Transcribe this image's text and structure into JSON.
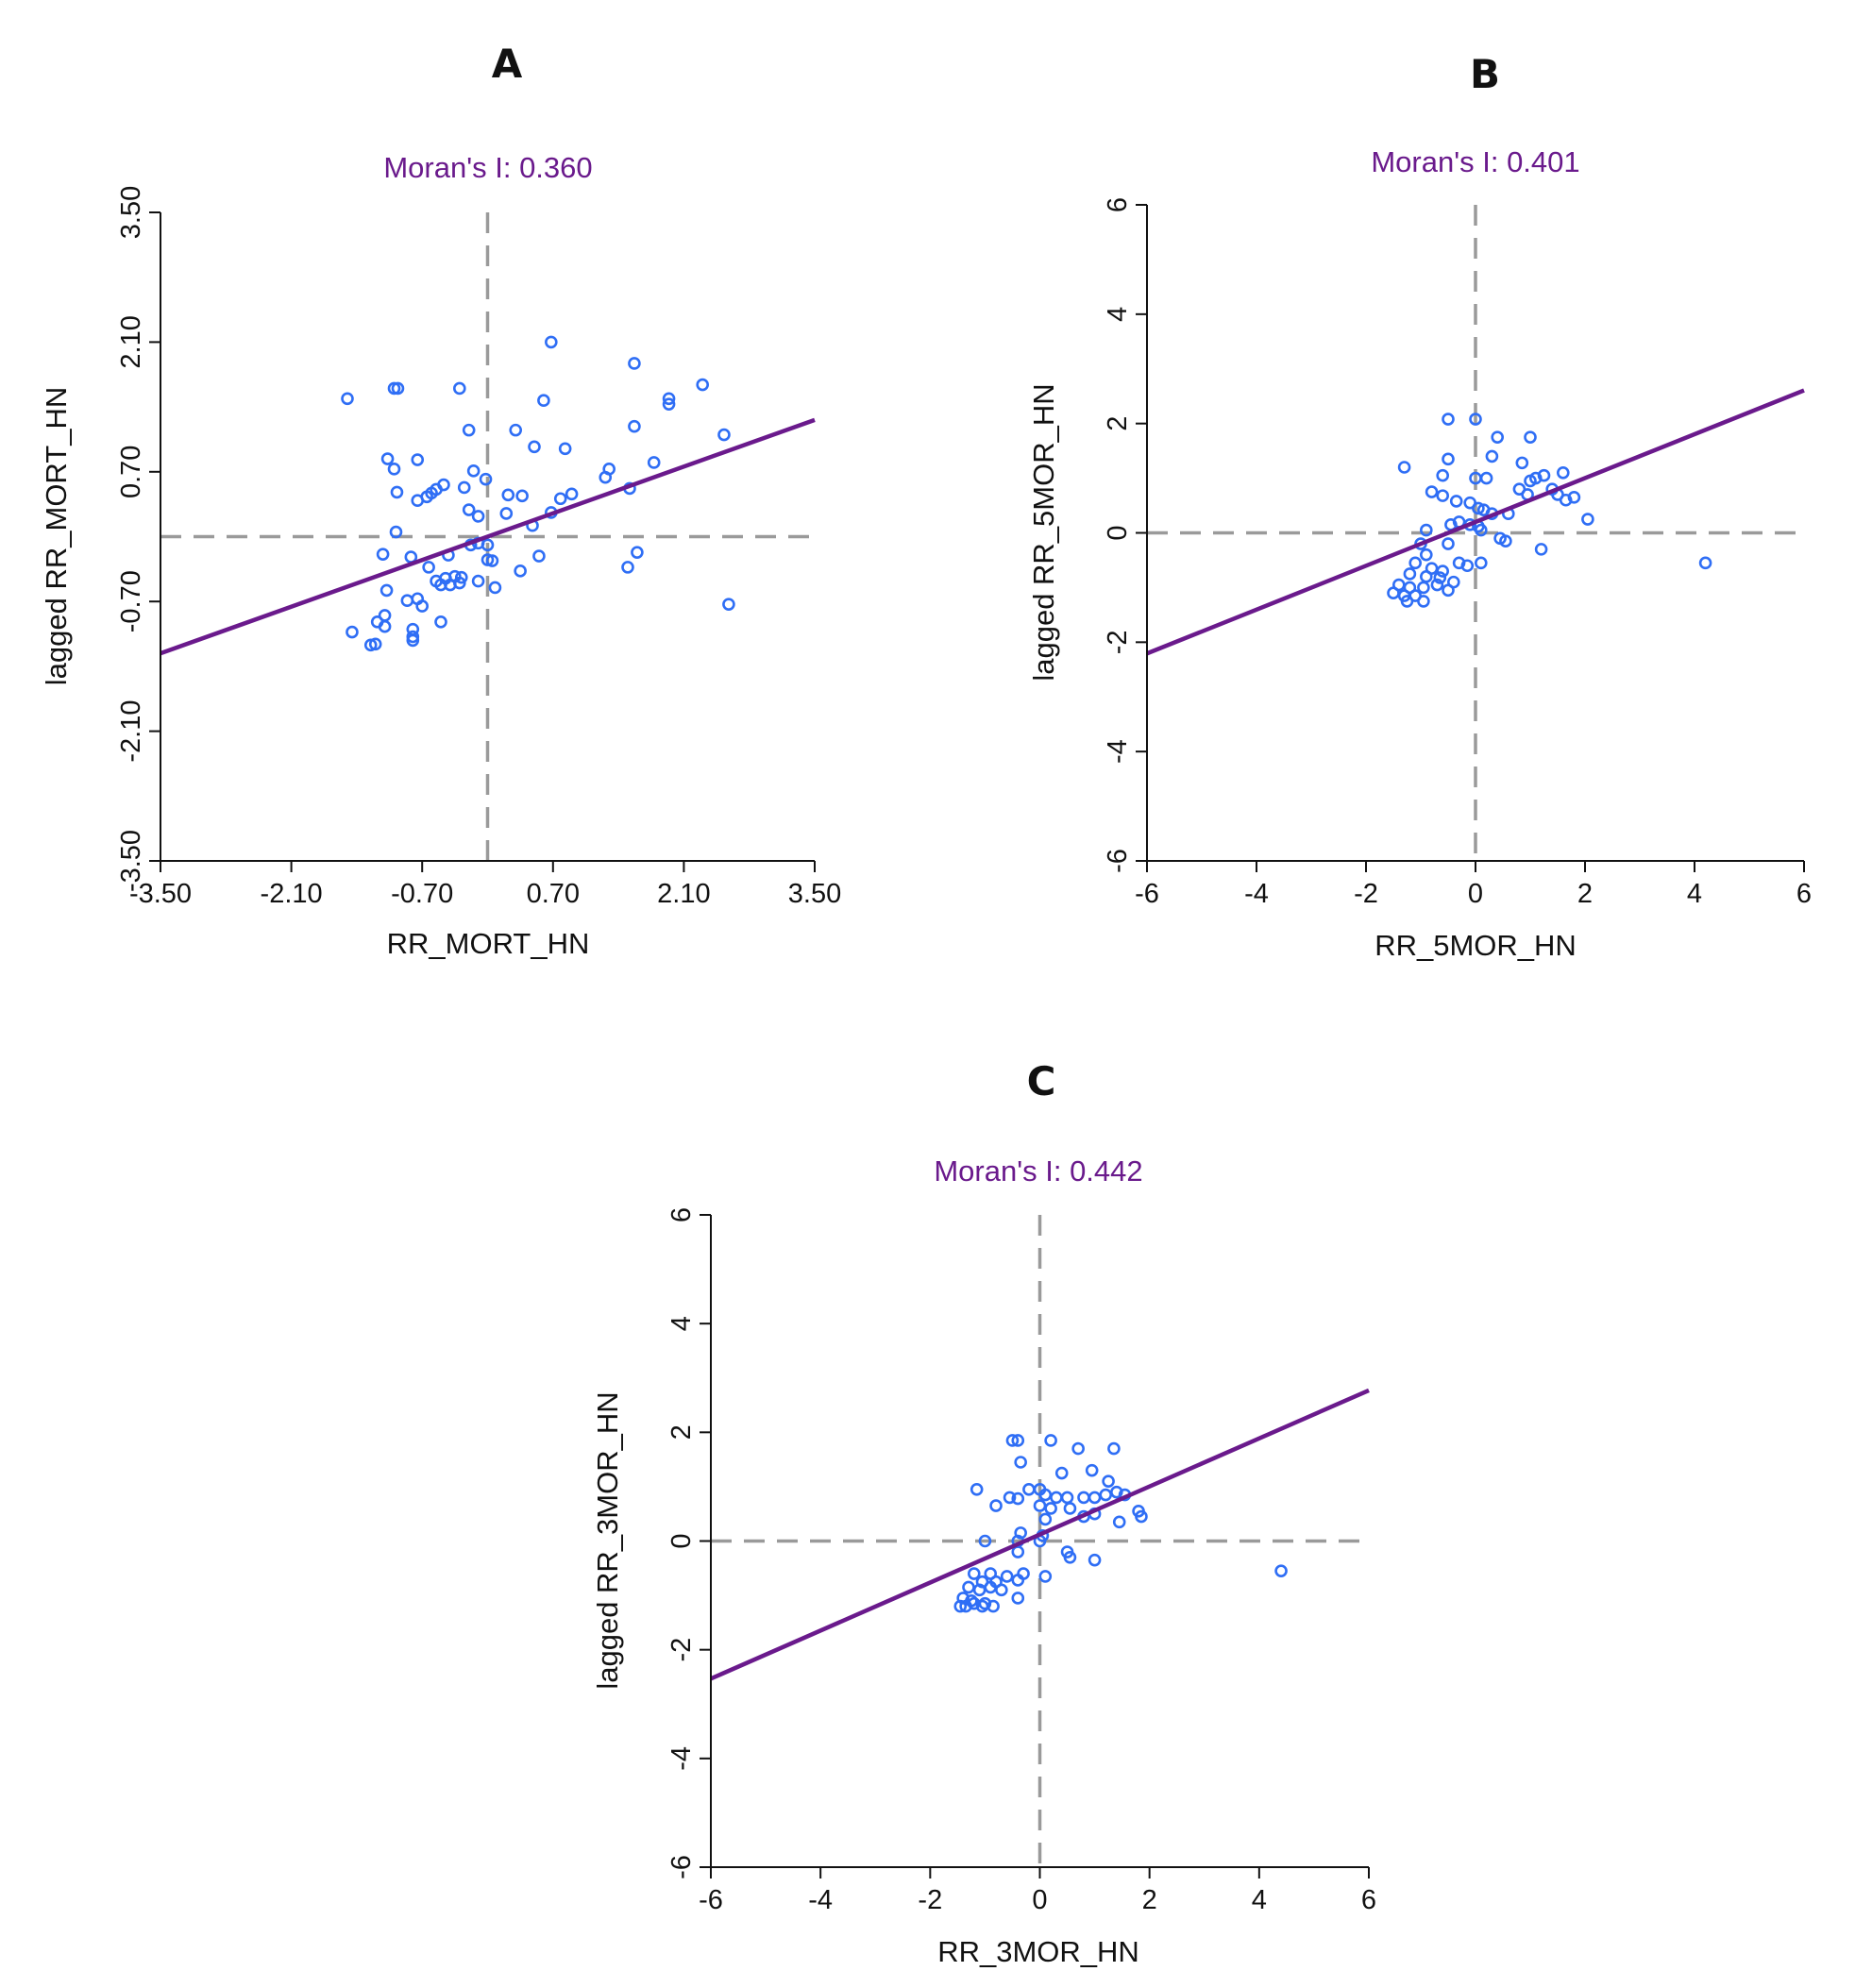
{
  "colors": {
    "points": "#2f6ef5",
    "regression": "#6a1a8c",
    "moran_text": "#6a1a8c"
  },
  "chart_data": [
    {
      "type": "scatter",
      "panel": "A",
      "title": "Moran's I: 0.360",
      "xlabel": "RR_MORT_HN",
      "ylabel": "lagged RR_MORT_HN",
      "xlim": [
        -3.5,
        3.5
      ],
      "ylim": [
        -3.5,
        3.5
      ],
      "xticks": [
        -3.5,
        -2.1,
        -0.7,
        0.7,
        2.1,
        3.5
      ],
      "yticks": [
        -3.5,
        -2.1,
        -0.7,
        0.7,
        2.1,
        3.5
      ],
      "xtick_labels": [
        "-3.50",
        "-2.10",
        "-0.70",
        "0.70",
        "2.10",
        "3.50"
      ],
      "ytick_labels": [
        "-3.50",
        "-2.10",
        "-0.70",
        "0.70",
        "2.10",
        "3.50"
      ],
      "regression": {
        "slope": 0.36,
        "intercept": 0.0
      },
      "reference_lines": {
        "x": 0,
        "y": 0
      },
      "points": [
        [
          -1.5,
          1.49
        ],
        [
          -1.0,
          1.6
        ],
        [
          -0.96,
          1.6
        ],
        [
          -0.3,
          1.6
        ],
        [
          0.68,
          2.1
        ],
        [
          1.57,
          1.87
        ],
        [
          2.3,
          1.64
        ],
        [
          1.94,
          1.49
        ],
        [
          1.94,
          1.43
        ],
        [
          2.53,
          1.1
        ],
        [
          1.57,
          1.19
        ],
        [
          0.6,
          1.47
        ],
        [
          0.3,
          1.15
        ],
        [
          0.5,
          0.97
        ],
        [
          0.83,
          0.95
        ],
        [
          -0.2,
          1.15
        ],
        [
          -1.07,
          0.84
        ],
        [
          -0.75,
          0.83
        ],
        [
          -1.0,
          0.73
        ],
        [
          -0.97,
          0.48
        ],
        [
          -0.75,
          0.39
        ],
        [
          -0.65,
          0.43
        ],
        [
          -0.6,
          0.47
        ],
        [
          -0.55,
          0.51
        ],
        [
          -0.47,
          0.56
        ],
        [
          -0.25,
          0.53
        ],
        [
          -0.15,
          0.71
        ],
        [
          -0.02,
          0.62
        ],
        [
          0.22,
          0.45
        ],
        [
          0.37,
          0.44
        ],
        [
          1.3,
          0.73
        ],
        [
          1.26,
          0.64
        ],
        [
          1.78,
          0.8
        ],
        [
          1.52,
          0.52
        ],
        [
          0.9,
          0.46
        ],
        [
          0.78,
          0.41
        ],
        [
          0.68,
          0.26
        ],
        [
          0.48,
          0.12
        ],
        [
          0.2,
          0.25
        ],
        [
          -0.2,
          0.29
        ],
        [
          -0.1,
          0.22
        ],
        [
          -0.98,
          0.05
        ],
        [
          -0.1,
          -0.07
        ],
        [
          0.0,
          -0.09
        ],
        [
          -0.18,
          -0.09
        ],
        [
          -1.12,
          -0.19
        ],
        [
          -0.82,
          -0.22
        ],
        [
          -0.63,
          -0.33
        ],
        [
          -0.42,
          -0.2
        ],
        [
          0.05,
          -0.26
        ],
        [
          0.0,
          -0.25
        ],
        [
          0.55,
          -0.21
        ],
        [
          0.35,
          -0.37
        ],
        [
          1.6,
          -0.17
        ],
        [
          1.5,
          -0.33
        ],
        [
          2.58,
          -0.73
        ],
        [
          -0.45,
          -0.45
        ],
        [
          -0.55,
          -0.48
        ],
        [
          -0.35,
          -0.43
        ],
        [
          -0.3,
          -0.5
        ],
        [
          -0.28,
          -0.44
        ],
        [
          -0.1,
          -0.48
        ],
        [
          0.08,
          -0.55
        ],
        [
          -0.4,
          -0.52
        ],
        [
          -0.5,
          -0.52
        ],
        [
          -1.08,
          -0.58
        ],
        [
          -0.86,
          -0.69
        ],
        [
          -0.75,
          -0.67
        ],
        [
          -0.7,
          -0.75
        ],
        [
          -0.5,
          -0.92
        ],
        [
          -1.1,
          -0.85
        ],
        [
          -1.18,
          -0.92
        ],
        [
          -1.1,
          -0.97
        ],
        [
          -0.8,
          -1.0
        ],
        [
          -0.8,
          -1.08
        ],
        [
          -0.8,
          -1.12
        ],
        [
          -1.45,
          -1.03
        ],
        [
          -1.2,
          -1.16
        ],
        [
          -1.25,
          -1.17
        ]
      ]
    },
    {
      "type": "scatter",
      "panel": "B",
      "title": "Moran's I: 0.401",
      "xlabel": "RR_5MOR_HN",
      "ylabel": "lagged RR_5MOR_HN",
      "xlim": [
        -6,
        6
      ],
      "ylim": [
        -6,
        6
      ],
      "xticks": [
        -6,
        -4,
        -2,
        0,
        2,
        4,
        6
      ],
      "yticks": [
        -6,
        -4,
        -2,
        0,
        2,
        4,
        6
      ],
      "xtick_labels": [
        "-6",
        "-4",
        "-2",
        "0",
        "2",
        "4",
        "6"
      ],
      "ytick_labels": [
        "-6",
        "-4",
        "-2",
        "0",
        "2",
        "4",
        "6"
      ],
      "regression": {
        "slope": 0.401,
        "intercept": 0.2
      },
      "reference_lines": {
        "x": 0,
        "y": 0
      },
      "points": [
        [
          -0.5,
          2.08
        ],
        [
          0.0,
          2.08
        ],
        [
          -1.3,
          1.2
        ],
        [
          -0.5,
          1.35
        ],
        [
          0.4,
          1.75
        ],
        [
          1.0,
          1.75
        ],
        [
          0.3,
          1.4
        ],
        [
          0.85,
          1.28
        ],
        [
          -0.6,
          1.05
        ],
        [
          0.0,
          1.0
        ],
        [
          0.2,
          1.0
        ],
        [
          -0.8,
          0.75
        ],
        [
          -0.6,
          0.68
        ],
        [
          -0.35,
          0.58
        ],
        [
          -0.1,
          0.55
        ],
        [
          0.05,
          0.45
        ],
        [
          0.15,
          0.42
        ],
        [
          0.3,
          0.35
        ],
        [
          0.6,
          0.35
        ],
        [
          0.8,
          0.8
        ],
        [
          0.95,
          0.7
        ],
        [
          1.1,
          1.0
        ],
        [
          1.25,
          1.05
        ],
        [
          1.0,
          0.95
        ],
        [
          1.4,
          0.8
        ],
        [
          1.6,
          1.1
        ],
        [
          1.5,
          0.7
        ],
        [
          1.65,
          0.6
        ],
        [
          1.8,
          0.65
        ],
        [
          2.05,
          0.25
        ],
        [
          -0.45,
          0.15
        ],
        [
          -0.3,
          0.2
        ],
        [
          -0.1,
          0.15
        ],
        [
          0.05,
          0.12
        ],
        [
          0.1,
          0.05
        ],
        [
          -0.9,
          0.05
        ],
        [
          0.45,
          -0.1
        ],
        [
          0.55,
          -0.15
        ],
        [
          1.2,
          -0.3
        ],
        [
          -0.5,
          -0.2
        ],
        [
          -1.0,
          -0.2
        ],
        [
          -0.9,
          -0.4
        ],
        [
          -1.1,
          -0.55
        ],
        [
          -0.8,
          -0.65
        ],
        [
          -0.6,
          -0.7
        ],
        [
          -0.3,
          -0.55
        ],
        [
          -0.15,
          -0.6
        ],
        [
          0.1,
          -0.55
        ],
        [
          -1.2,
          -0.75
        ],
        [
          -0.9,
          -0.8
        ],
        [
          -0.65,
          -0.82
        ],
        [
          -0.4,
          -0.9
        ],
        [
          -1.4,
          -0.95
        ],
        [
          -1.2,
          -1.0
        ],
        [
          -0.95,
          -1.0
        ],
        [
          -0.7,
          -0.95
        ],
        [
          -0.5,
          -1.05
        ],
        [
          -1.5,
          -1.1
        ],
        [
          -1.3,
          -1.15
        ],
        [
          -1.1,
          -1.15
        ],
        [
          -0.95,
          -1.25
        ],
        [
          -1.25,
          -1.25
        ],
        [
          4.2,
          -0.55
        ]
      ]
    },
    {
      "type": "scatter",
      "panel": "C",
      "title": "Moran's I: 0.442",
      "xlabel": "RR_3MOR_HN",
      "ylabel": "lagged RR_3MOR_HN",
      "xlim": [
        -6,
        6
      ],
      "ylim": [
        -6,
        6
      ],
      "xticks": [
        -6,
        -4,
        -2,
        0,
        2,
        4,
        6
      ],
      "yticks": [
        -6,
        -4,
        -2,
        0,
        2,
        4,
        6
      ],
      "xtick_labels": [
        "-6",
        "-4",
        "-2",
        "0",
        "2",
        "4",
        "6"
      ],
      "ytick_labels": [
        "-6",
        "-4",
        "-2",
        "0",
        "2",
        "4",
        "6"
      ],
      "regression": {
        "slope": 0.442,
        "intercept": 0.12
      },
      "reference_lines": {
        "x": 0,
        "y": 0
      },
      "points": [
        [
          -0.5,
          1.85
        ],
        [
          -0.4,
          1.85
        ],
        [
          0.2,
          1.85
        ],
        [
          0.7,
          1.7
        ],
        [
          1.35,
          1.7
        ],
        [
          -0.35,
          1.45
        ],
        [
          0.4,
          1.25
        ],
        [
          0.95,
          1.3
        ],
        [
          1.25,
          1.1
        ],
        [
          -1.15,
          0.95
        ],
        [
          -0.2,
          0.95
        ],
        [
          0.0,
          0.95
        ],
        [
          0.1,
          0.85
        ],
        [
          0.3,
          0.8
        ],
        [
          0.5,
          0.8
        ],
        [
          0.8,
          0.8
        ],
        [
          1.0,
          0.8
        ],
        [
          1.2,
          0.85
        ],
        [
          1.4,
          0.9
        ],
        [
          1.55,
          0.85
        ],
        [
          -0.8,
          0.65
        ],
        [
          -0.55,
          0.8
        ],
        [
          -0.4,
          0.78
        ],
        [
          0.0,
          0.65
        ],
        [
          0.2,
          0.6
        ],
        [
          0.55,
          0.6
        ],
        [
          0.8,
          0.45
        ],
        [
          1.0,
          0.5
        ],
        [
          1.45,
          0.35
        ],
        [
          1.8,
          0.55
        ],
        [
          1.85,
          0.45
        ],
        [
          0.1,
          0.4
        ],
        [
          -0.35,
          0.15
        ],
        [
          0.05,
          0.1
        ],
        [
          -0.4,
          0.0
        ],
        [
          -1.0,
          0.0
        ],
        [
          0.0,
          0.0
        ],
        [
          0.5,
          -0.2
        ],
        [
          0.55,
          -0.3
        ],
        [
          1.0,
          -0.35
        ],
        [
          -0.4,
          -0.2
        ],
        [
          -1.2,
          -0.6
        ],
        [
          -0.9,
          -0.6
        ],
        [
          -0.6,
          -0.65
        ],
        [
          -0.3,
          -0.6
        ],
        [
          0.1,
          -0.65
        ],
        [
          -1.05,
          -0.75
        ],
        [
          -0.8,
          -0.75
        ],
        [
          -0.4,
          -0.72
        ],
        [
          -1.3,
          -0.85
        ],
        [
          -1.1,
          -0.9
        ],
        [
          -0.9,
          -0.85
        ],
        [
          -0.7,
          -0.9
        ],
        [
          -0.4,
          -1.05
        ],
        [
          -1.4,
          -1.05
        ],
        [
          -1.25,
          -1.1
        ],
        [
          -1.0,
          -1.15
        ],
        [
          -0.85,
          -1.2
        ],
        [
          -1.45,
          -1.2
        ],
        [
          -1.35,
          -1.2
        ],
        [
          -1.2,
          -1.15
        ],
        [
          -1.05,
          -1.2
        ],
        [
          4.4,
          -0.55
        ]
      ]
    }
  ]
}
